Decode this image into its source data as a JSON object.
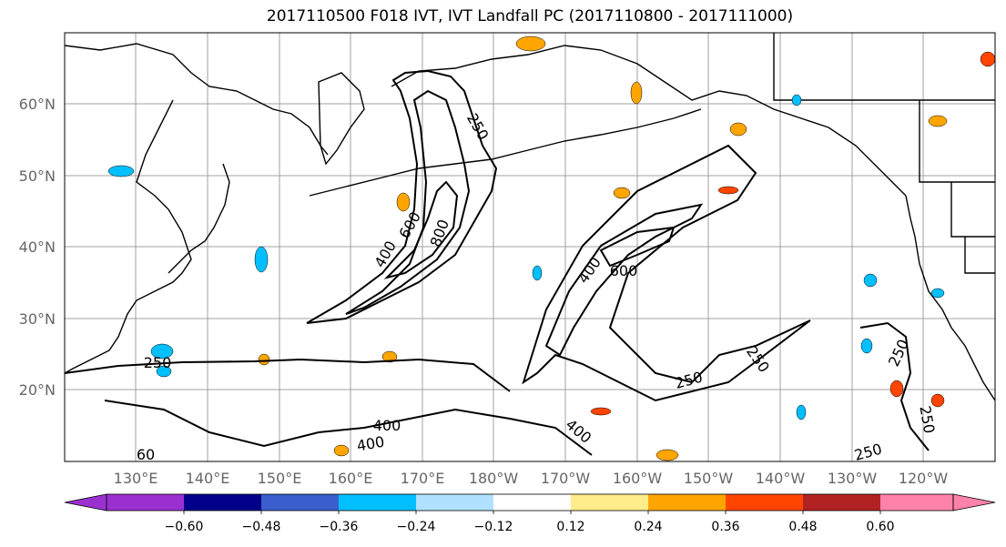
{
  "title": "2017110500 F018 IVT, IVT Landfall PC (2017110800 - 2017111000)",
  "map": {
    "lat_labels": [
      "60°N",
      "50°N",
      "40°N",
      "30°N",
      "20°N"
    ],
    "lon_labels": [
      "130°E",
      "140°E",
      "150°E",
      "160°E",
      "170°E",
      "180°W",
      "170°W",
      "160°W",
      "150°W",
      "140°W",
      "130°W",
      "120°W"
    ],
    "contour_labels": [
      "250",
      "600",
      "400",
      "800",
      "400",
      "600",
      "250",
      "250",
      "250",
      "400",
      "400",
      "400",
      "60",
      "250",
      "250",
      "250"
    ],
    "colors": {
      "contour": "#000000",
      "grid": "#a0a0a0",
      "land": "#ffffff"
    }
  },
  "colorbar": {
    "tick_labels": [
      "−0.60",
      "−0.48",
      "−0.36",
      "−0.24",
      "−0.12",
      "0.12",
      "0.24",
      "0.36",
      "0.48",
      "0.60"
    ],
    "colors": [
      "#9b30d0",
      "#00008b",
      "#3a5fcd",
      "#00bfff",
      "#b0e2ff",
      "#ffffff",
      "#ffec8b",
      "#ffa500",
      "#ff4500",
      "#b22222",
      "#ff82ab"
    ]
  }
}
